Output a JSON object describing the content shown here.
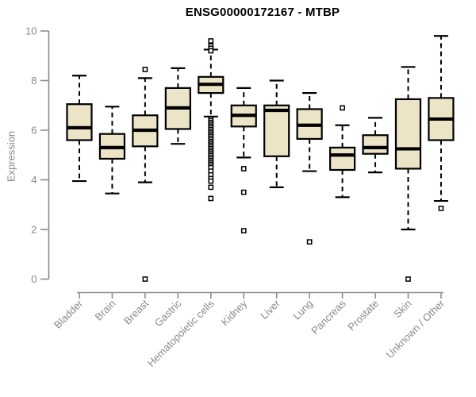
{
  "title": "ENSG00000172167 - MTBP",
  "ylabel": "Expression",
  "colors": {
    "box_fill": "#ece4c6",
    "box_stroke": "#000000",
    "axis": "#8c8c8c",
    "tick_label": "#8a8a8a",
    "title": "#000000"
  },
  "chart_data": {
    "type": "boxplot",
    "title": "ENSG00000172167 - MTBP",
    "xlabel": "",
    "ylabel": "Expression",
    "ylim": [
      0,
      10
    ],
    "yticks": [
      0,
      2,
      4,
      6,
      8,
      10
    ],
    "grid": false,
    "categories": [
      "Bladder",
      "Brain",
      "Breast",
      "Gastric",
      "Hematopoietic cells",
      "Kidney",
      "Liver",
      "Lung",
      "Pancreas",
      "Prostate",
      "Skin",
      "Unknown / Other"
    ],
    "boxes": [
      {
        "label": "Bladder",
        "whisker_low": 3.95,
        "q1": 5.6,
        "median": 6.1,
        "q3": 7.05,
        "whisker_high": 8.2,
        "outliers": []
      },
      {
        "label": "Brain",
        "whisker_low": 3.45,
        "q1": 4.85,
        "median": 5.3,
        "q3": 5.85,
        "whisker_high": 6.95,
        "outliers": []
      },
      {
        "label": "Breast",
        "whisker_low": 3.9,
        "q1": 5.35,
        "median": 6.0,
        "q3": 6.6,
        "whisker_high": 8.1,
        "outliers": [
          8.45,
          0.0
        ]
      },
      {
        "label": "Gastric",
        "whisker_low": 5.45,
        "q1": 6.05,
        "median": 6.9,
        "q3": 7.7,
        "whisker_high": 8.5,
        "outliers": []
      },
      {
        "label": "Hematopoietic cells",
        "whisker_low": 6.55,
        "q1": 7.5,
        "median": 7.85,
        "q3": 8.15,
        "whisker_high": 9.25,
        "outliers": [
          9.6,
          9.4,
          9.3,
          9.2,
          6.45,
          6.38,
          6.31,
          6.24,
          6.17,
          6.1,
          6.03,
          5.96,
          5.89,
          5.82,
          5.75,
          5.68,
          5.61,
          5.54,
          5.47,
          5.4,
          5.33,
          5.26,
          5.19,
          5.12,
          5.05,
          4.98,
          4.91,
          4.84,
          4.77,
          4.7,
          4.63,
          4.56,
          4.49,
          4.35,
          4.2,
          4.05,
          3.95,
          3.7,
          3.25
        ]
      },
      {
        "label": "Kidney",
        "whisker_low": 4.9,
        "q1": 6.15,
        "median": 6.6,
        "q3": 7.0,
        "whisker_high": 7.7,
        "outliers": [
          4.45,
          3.5,
          1.95
        ]
      },
      {
        "label": "Liver",
        "whisker_low": 3.7,
        "q1": 4.95,
        "median": 6.8,
        "q3": 7.0,
        "whisker_high": 8.0,
        "outliers": []
      },
      {
        "label": "Lung",
        "whisker_low": 4.35,
        "q1": 5.65,
        "median": 6.2,
        "q3": 6.85,
        "whisker_high": 7.5,
        "outliers": [
          1.5
        ]
      },
      {
        "label": "Pancreas",
        "whisker_low": 3.3,
        "q1": 4.4,
        "median": 5.0,
        "q3": 5.3,
        "whisker_high": 6.2,
        "outliers": [
          6.9
        ]
      },
      {
        "label": "Prostate",
        "whisker_low": 4.3,
        "q1": 5.05,
        "median": 5.3,
        "q3": 5.8,
        "whisker_high": 6.5,
        "outliers": []
      },
      {
        "label": "Skin",
        "whisker_low": 2.0,
        "q1": 4.45,
        "median": 5.25,
        "q3": 7.25,
        "whisker_high": 8.55,
        "outliers": [
          0.0
        ]
      },
      {
        "label": "Unknown / Other",
        "whisker_low": 3.15,
        "q1": 5.6,
        "median": 6.45,
        "q3": 7.3,
        "whisker_high": 9.8,
        "outliers": [
          2.85
        ]
      }
    ]
  }
}
